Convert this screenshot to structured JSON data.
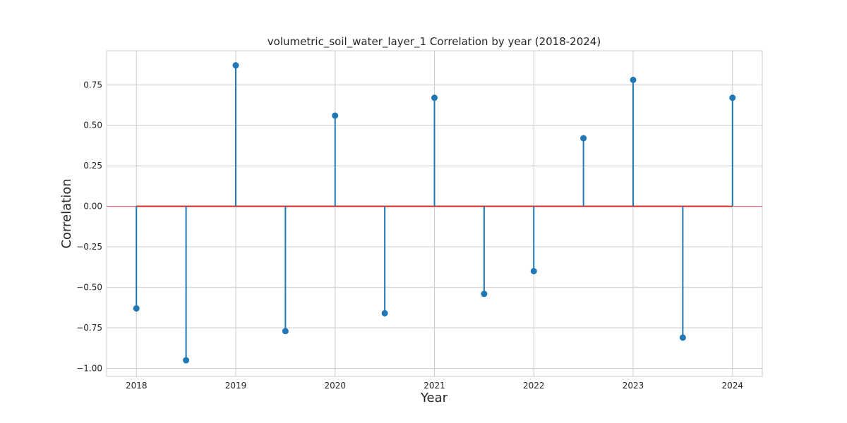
{
  "chart_data": {
    "type": "stem",
    "title": "volumetric_soil_water_layer_1 Correlation by year (2018-2024)",
    "xlabel": "Year",
    "ylabel": "Correlation",
    "x": [
      2018.0,
      2018.5,
      2019.0,
      2019.5,
      2020.0,
      2020.5,
      2021.0,
      2021.5,
      2022.0,
      2022.5,
      2023.0,
      2023.5,
      2024.0
    ],
    "values": [
      -0.63,
      -0.95,
      0.87,
      -0.77,
      0.56,
      -0.66,
      0.67,
      -0.54,
      -0.4,
      0.42,
      0.78,
      -0.81,
      0.67
    ],
    "xlim": [
      2017.7,
      2024.3
    ],
    "ylim": [
      -1.05,
      0.96
    ],
    "xticks": [
      2018,
      2019,
      2020,
      2021,
      2022,
      2023,
      2024
    ],
    "xtick_labels": [
      "2018",
      "2019",
      "2020",
      "2021",
      "2022",
      "2023",
      "2024"
    ],
    "yticks": [
      -1.0,
      -0.75,
      -0.5,
      -0.25,
      0.0,
      0.25,
      0.5,
      0.75
    ],
    "ytick_labels": [
      "−1.00",
      "−0.75",
      "−0.50",
      "−0.25",
      "0.00",
      "0.25",
      "0.50",
      "0.75"
    ],
    "baseline": 0.0,
    "grid": true,
    "colors": {
      "stem": "#1f77b4",
      "marker": "#1f77b4",
      "baseline": "#d62728",
      "grid": "#cccccc",
      "spine": "#cccccc",
      "text": "#262626"
    }
  }
}
